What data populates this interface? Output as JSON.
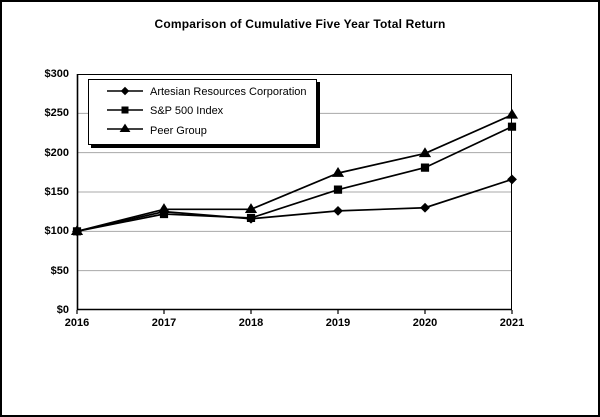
{
  "title": "Comparison of Cumulative Five Year Total Return",
  "chart_data": {
    "type": "line",
    "x": [
      2016,
      2017,
      2018,
      2019,
      2020,
      2021
    ],
    "xtick_labels": [
      "2016",
      "2017",
      "2018",
      "2019",
      "2020",
      "2021"
    ],
    "ytick_labels": [
      "$0",
      "$50",
      "$100",
      "$150",
      "$200",
      "$250",
      "$300"
    ],
    "ylim": [
      0,
      300
    ],
    "ytick_step": 50,
    "grid": true,
    "legend_position": "top-left",
    "series": [
      {
        "name": "Artesian Resources Corporation",
        "marker": "diamond",
        "z": 1,
        "values": [
          100,
          125,
          116,
          126,
          130,
          166
        ]
      },
      {
        "name": "S&P 500 Index",
        "marker": "square",
        "z": 3,
        "values": [
          100,
          122,
          117,
          153,
          181,
          233
        ]
      },
      {
        "name": "Peer Group",
        "marker": "triangle",
        "z": 2,
        "values": [
          100,
          128,
          128,
          174,
          199,
          248
        ]
      }
    ],
    "colors": {
      "line": "#000000",
      "marker": "#000000",
      "grid": "#a8a8a8",
      "plot_border": "#000000",
      "background": "#ffffff"
    }
  }
}
